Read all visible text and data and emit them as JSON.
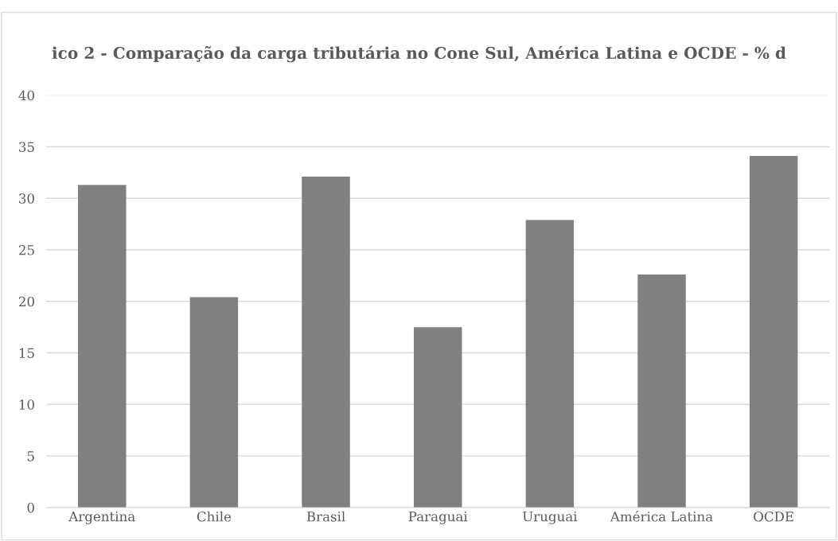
{
  "chart_data": {
    "type": "bar",
    "title": "ico 2 - Comparação da carga tributária no Cone Sul, América Latina e OCDE - % d",
    "categories": [
      "Argentina",
      "Chile",
      "Brasil",
      "Paraguai",
      "Uruguai",
      "América Latina",
      "OCDE"
    ],
    "values": [
      31.3,
      20.4,
      32.1,
      17.5,
      27.9,
      22.6,
      34.1
    ],
    "color": "#808080",
    "ylim": [
      0,
      40
    ],
    "yticks": [
      0,
      5,
      10,
      15,
      20,
      25,
      30,
      35,
      40
    ],
    "grid": "y"
  }
}
